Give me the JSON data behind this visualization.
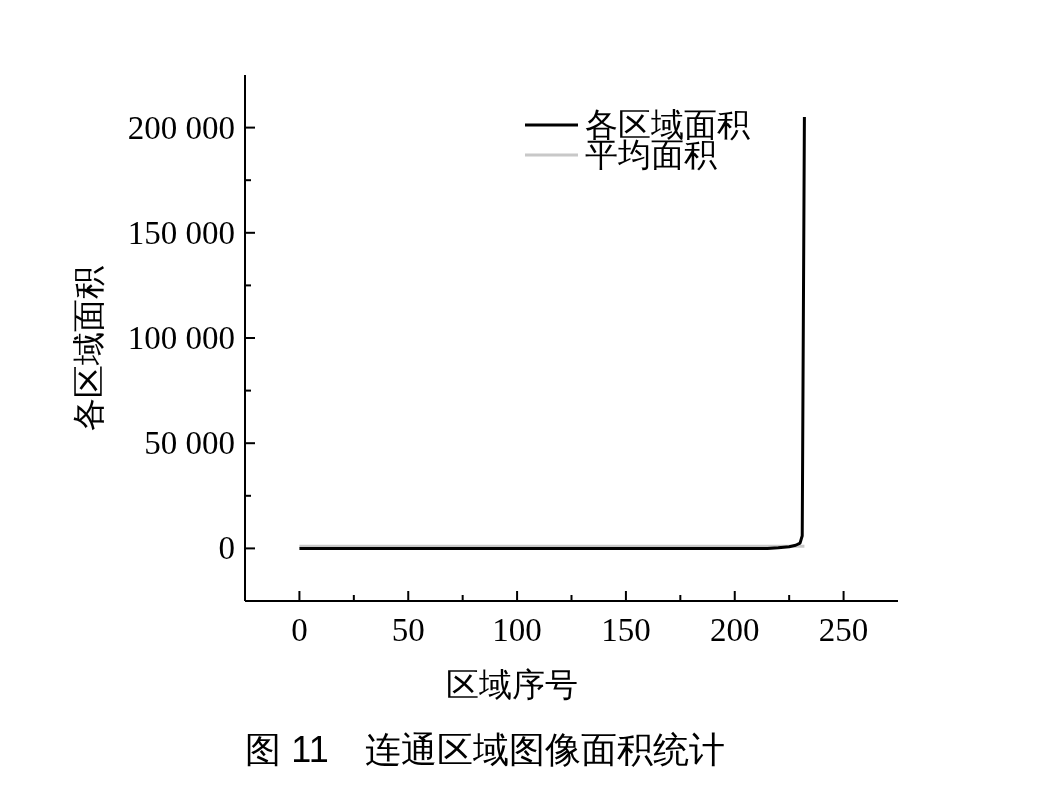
{
  "chart_data": {
    "type": "line",
    "title": "图 11　连通区域图像面积统计",
    "xlabel": "区域序号",
    "ylabel": "各区域面积",
    "series": [
      {
        "name": "各区域面积",
        "color": "#000000",
        "x": [
          0,
          50,
          100,
          150,
          200,
          215,
          220,
          225,
          228,
          230,
          231,
          232
        ],
        "values": [
          0,
          0,
          0,
          0,
          0,
          0,
          300,
          800,
          1500,
          2500,
          6000,
          205000
        ]
      },
      {
        "name": "平均面积",
        "color": "#c8c8c8",
        "x": [
          0,
          232
        ],
        "values": [
          1000,
          1000
        ]
      }
    ],
    "xlim": [
      -25,
      275
    ],
    "xticks": [
      0,
      {
        "value": 25,
        "label": null
      },
      50,
      {
        "value": 75,
        "label": null
      },
      100,
      {
        "value": 125,
        "label": null
      },
      150,
      {
        "value": 175,
        "label": null
      },
      200,
      {
        "value": 225,
        "label": null
      },
      250
    ],
    "ylim": [
      -25000,
      225000
    ],
    "yticks": [
      {
        "value": 0,
        "label": "0"
      },
      {
        "value": 25000,
        "label": null
      },
      {
        "value": 50000,
        "label": "50 000"
      },
      {
        "value": 75000,
        "label": null
      },
      {
        "value": 100000,
        "label": "100 000"
      },
      {
        "value": 125000,
        "label": null
      },
      {
        "value": 150000,
        "label": "150 000"
      },
      {
        "value": 175000,
        "label": null
      },
      {
        "value": 200000,
        "label": "200 000"
      }
    ],
    "legend": "top right",
    "grid": false,
    "marker": "none",
    "line_style": "solid"
  }
}
